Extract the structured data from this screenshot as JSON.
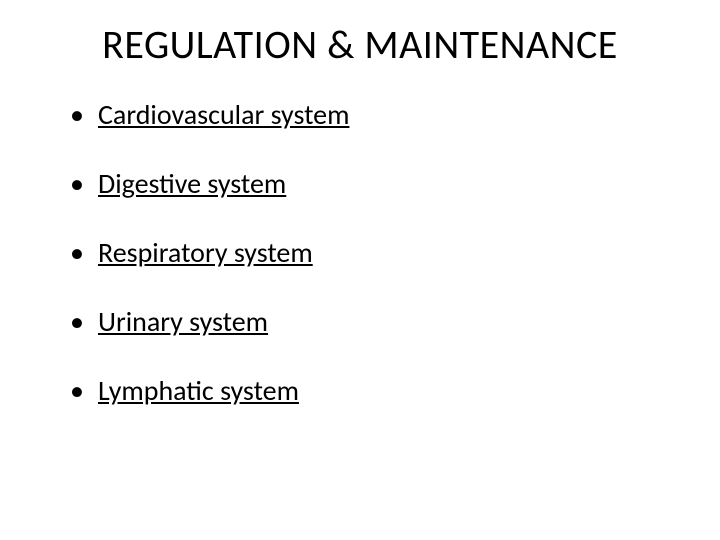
{
  "slide": {
    "title": "REGULATION & MAINTENANCE",
    "title_fontsize": 40,
    "title_color": "#000000",
    "bullets": [
      "Cardiovascular system",
      "Digestive system",
      "Respiratory system",
      "Urinary system",
      "Lymphatic system"
    ],
    "bullet_fontsize": 28,
    "bullet_color": "#000000",
    "background_color": "#ffffff",
    "underline": true
  }
}
